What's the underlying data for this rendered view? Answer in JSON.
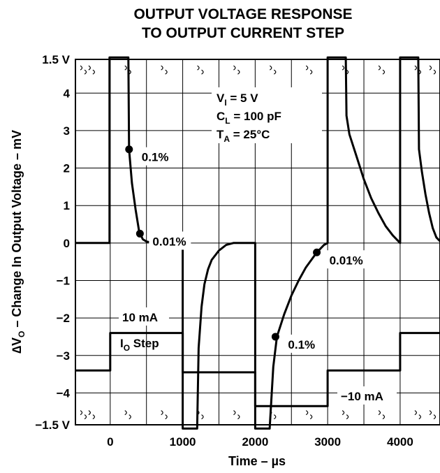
{
  "chart_data": {
    "type": "line",
    "title": "OUTPUT VOLTAGE RESPONSE",
    "subtitle": "TO OUTPUT CURRENT STEP",
    "xlabel": {
      "prefix": "Time – ",
      "unit": "µs"
    },
    "ylabel": {
      "delta": "∆V",
      "sub": "O",
      "rest": " – Change In Output Voltage – mV"
    },
    "xlim": [
      -480,
      4550
    ],
    "ylim": [
      -4.85,
      4.9
    ],
    "x_ticks": [
      {
        "value": 0,
        "label": "0"
      },
      {
        "value": 1000,
        "label": "1000"
      },
      {
        "value": 2000,
        "label": "2000"
      },
      {
        "value": 3000,
        "label": "3000"
      },
      {
        "value": 4000,
        "label": "4000"
      }
    ],
    "y_ticks": [
      {
        "value": 4.9,
        "label": "1.5 V"
      },
      {
        "value": 4,
        "label": "4"
      },
      {
        "value": 3,
        "label": "3"
      },
      {
        "value": 2,
        "label": "2"
      },
      {
        "value": 1,
        "label": "1"
      },
      {
        "value": 0,
        "label": "0"
      },
      {
        "value": -1,
        "label": "−1"
      },
      {
        "value": -2,
        "label": "−2"
      },
      {
        "value": -3,
        "label": "−3"
      },
      {
        "value": -4,
        "label": "−4"
      },
      {
        "value": -4.85,
        "label": "−1.5 V"
      }
    ],
    "grid": true,
    "conditions": [
      {
        "main": "V",
        "sub": "I",
        "rest": " = 5 V"
      },
      {
        "main": "C",
        "sub": "L",
        "rest": " = 100 pF"
      },
      {
        "main": "T",
        "sub": "A",
        "rest": " = 25°C"
      }
    ],
    "series": [
      {
        "points": [
          [
            -480,
            0
          ],
          [
            -10,
            0
          ],
          [
            -10,
            4.95
          ],
          [
            0,
            4.95
          ],
          [
            100,
            4.95
          ],
          [
            250,
            4.95
          ],
          [
            260,
            2.5
          ],
          [
            300,
            1.6
          ],
          [
            350,
            0.9
          ],
          [
            400,
            0.3
          ],
          [
            450,
            0.1
          ],
          [
            500,
            0.04
          ],
          [
            600,
            0
          ],
          [
            1000,
            0
          ],
          [
            1000,
            -4.95
          ],
          [
            1050,
            -4.95
          ],
          [
            1200,
            -4.95
          ],
          [
            1220,
            -2.8
          ],
          [
            1260,
            -1.7
          ],
          [
            1300,
            -1.1
          ],
          [
            1350,
            -0.7
          ],
          [
            1400,
            -0.45
          ],
          [
            1500,
            -0.2
          ],
          [
            1600,
            -0.05
          ],
          [
            1700,
            0
          ],
          [
            2000,
            0
          ],
          [
            2000,
            -4.95
          ],
          [
            2050,
            -4.95
          ],
          [
            2200,
            -4.95
          ],
          [
            2250,
            -3.3
          ],
          [
            2300,
            -2.5
          ],
          [
            2400,
            -1.9
          ],
          [
            2500,
            -1.4
          ],
          [
            2600,
            -1.0
          ],
          [
            2700,
            -0.65
          ],
          [
            2850,
            -0.25
          ],
          [
            2950,
            -0.05
          ],
          [
            3000,
            0
          ],
          [
            3000,
            4.95
          ],
          [
            3050,
            4.95
          ],
          [
            3250,
            4.95
          ],
          [
            3260,
            3.4
          ],
          [
            3300,
            2.9
          ],
          [
            3400,
            2.3
          ],
          [
            3500,
            1.7
          ],
          [
            3600,
            1.2
          ],
          [
            3700,
            0.8
          ],
          [
            3800,
            0.45
          ],
          [
            3900,
            0.2
          ],
          [
            4000,
            0
          ],
          [
            4000,
            4.95
          ],
          [
            4050,
            4.95
          ],
          [
            4250,
            4.95
          ],
          [
            4260,
            2.5
          ],
          [
            4300,
            1.9
          ],
          [
            4350,
            1.3
          ],
          [
            4400,
            0.8
          ],
          [
            4450,
            0.4
          ],
          [
            4500,
            0.15
          ],
          [
            4550,
            0.05
          ]
        ]
      },
      {
        "points": [
          [
            -480,
            -3.4
          ],
          [
            0,
            -3.4
          ],
          [
            0,
            -2.4
          ],
          [
            1000,
            -2.4
          ],
          [
            1000,
            -3.45
          ],
          [
            2000,
            -3.45
          ],
          [
            2000,
            -4.35
          ],
          [
            3000,
            -4.35
          ],
          [
            3000,
            -3.4
          ],
          [
            4000,
            -3.4
          ],
          [
            4000,
            -2.4
          ],
          [
            4550,
            -2.4
          ]
        ]
      }
    ],
    "markers": [
      {
        "x": 260,
        "y": 2.5,
        "label": "0.1%"
      },
      {
        "x": 410,
        "y": 0.25,
        "label": "0.01%"
      },
      {
        "x": 2280,
        "y": -2.5,
        "label": "0.1%"
      },
      {
        "x": 2850,
        "y": -0.25,
        "label": "0.01%"
      }
    ],
    "current_labels": {
      "high": "10 mA",
      "step_main": "I",
      "step_sub": "O",
      "step_rest": " Step",
      "low": "−10 mA"
    }
  }
}
